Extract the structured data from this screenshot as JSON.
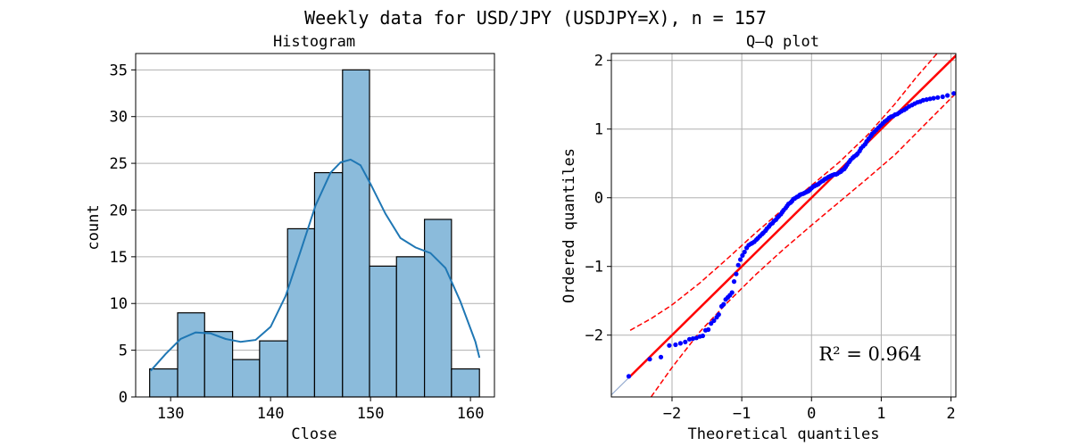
{
  "figure": {
    "title": "Weekly data for USD/JPY (USDJPY=X), n = 157"
  },
  "chart_data": [
    {
      "type": "bar",
      "subtype": "histogram",
      "title": "Histogram",
      "xlabel": "Close",
      "ylabel": "count",
      "xlim": [
        126.5,
        162.4
      ],
      "ylim": [
        0,
        36.75
      ],
      "xticks": [
        130,
        140,
        150,
        160
      ],
      "yticks": [
        0,
        5,
        10,
        15,
        20,
        25,
        30,
        35
      ],
      "grid": "y",
      "bar_color": "#8bbbdb",
      "edge_color": "#000000",
      "kde_color": "#1f77b4",
      "bins": [
        {
          "left": 127.9,
          "right": 130.7,
          "count": 3
        },
        {
          "left": 130.7,
          "right": 133.4,
          "count": 9
        },
        {
          "left": 133.4,
          "right": 136.2,
          "count": 7
        },
        {
          "left": 136.2,
          "right": 138.9,
          "count": 4
        },
        {
          "left": 138.9,
          "right": 141.7,
          "count": 6
        },
        {
          "left": 141.7,
          "right": 144.4,
          "count": 18
        },
        {
          "left": 144.4,
          "right": 147.2,
          "count": 24
        },
        {
          "left": 147.2,
          "right": 149.9,
          "count": 35
        },
        {
          "left": 149.9,
          "right": 152.6,
          "count": 14
        },
        {
          "left": 152.6,
          "right": 155.4,
          "count": 15
        },
        {
          "left": 155.4,
          "right": 158.1,
          "count": 19
        },
        {
          "left": 158.1,
          "right": 160.9,
          "count": 3
        }
      ],
      "kde": {
        "x": [
          128.0,
          129.5,
          131.0,
          132.5,
          134.0,
          135.5,
          137.0,
          138.5,
          140.0,
          141.5,
          143.0,
          144.5,
          146.0,
          147.0,
          148.0,
          149.0,
          150.0,
          151.5,
          153.0,
          154.5,
          156.0,
          157.5,
          159.0,
          160.5,
          160.9
        ],
        "y": [
          2.8,
          4.6,
          6.2,
          6.9,
          6.8,
          6.2,
          5.9,
          6.1,
          7.5,
          10.8,
          15.6,
          20.5,
          24.0,
          25.1,
          25.4,
          24.8,
          22.8,
          19.6,
          17.0,
          16.0,
          15.4,
          13.8,
          10.2,
          5.9,
          4.2
        ]
      }
    },
    {
      "type": "scatter",
      "subtype": "qq-plot",
      "title": "Q–Q plot",
      "xlabel": "Theoretical quantiles",
      "ylabel": "Ordered quantiles",
      "xlim": [
        -2.87,
        2.07
      ],
      "ylim": [
        -2.9,
        2.1
      ],
      "xticks": [
        -2,
        -1,
        0,
        1,
        2
      ],
      "yticks": [
        -2,
        -1,
        0,
        1,
        2
      ],
      "grid": "both",
      "annotation": "R² = 0.964",
      "point_color": "#0000ff",
      "line_color": "#ff0000",
      "fit_line": {
        "slope": 1.0,
        "intercept": 0.0
      },
      "ci_upper": {
        "x": [
          -2.6,
          -2.3,
          -2.0,
          -1.6,
          -1.2,
          -0.8,
          -0.4,
          0.0,
          0.4,
          0.8,
          1.2,
          1.5,
          1.8,
          2.07
        ],
        "y": [
          -1.93,
          -1.76,
          -1.56,
          -1.24,
          -0.88,
          -0.51,
          -0.16,
          0.18,
          0.52,
          0.91,
          1.37,
          1.75,
          2.1,
          2.45
        ]
      },
      "ci_lower": {
        "x": [
          -2.3,
          -2.0,
          -1.6,
          -1.2,
          -0.8,
          -0.4,
          0.0,
          0.4,
          0.8,
          1.2,
          1.6,
          2.07
        ],
        "y": [
          -2.9,
          -2.47,
          -1.95,
          -1.52,
          -1.12,
          -0.75,
          -0.4,
          -0.06,
          0.28,
          0.63,
          1.04,
          1.52
        ]
      },
      "points": {
        "x": [
          -2.62,
          -2.32,
          -2.16,
          -2.04,
          -1.95,
          -1.88,
          -1.81,
          -1.75,
          -1.7,
          -1.65,
          -1.6,
          -1.56,
          -1.52,
          -1.48,
          -1.44,
          -1.4,
          -1.36,
          -1.33,
          -1.29,
          -1.26,
          -1.23,
          -1.2,
          -1.17,
          -1.14,
          -1.11,
          -1.08,
          -1.05,
          -1.02,
          -0.99,
          -0.96,
          -0.93,
          -0.9,
          -0.87,
          -0.85,
          -0.82,
          -0.79,
          -0.77,
          -0.74,
          -0.71,
          -0.69,
          -0.66,
          -0.64,
          -0.61,
          -0.59,
          -0.56,
          -0.54,
          -0.51,
          -0.49,
          -0.47,
          -0.44,
          -0.42,
          -0.4,
          -0.37,
          -0.35,
          -0.33,
          -0.3,
          -0.28,
          -0.26,
          -0.24,
          -0.21,
          -0.19,
          -0.17,
          -0.15,
          -0.12,
          -0.1,
          -0.08,
          -0.06,
          -0.04,
          -0.02,
          0.0,
          0.02,
          0.04,
          0.06,
          0.08,
          0.1,
          0.12,
          0.15,
          0.17,
          0.19,
          0.21,
          0.24,
          0.26,
          0.28,
          0.3,
          0.33,
          0.35,
          0.37,
          0.4,
          0.42,
          0.44,
          0.47,
          0.49,
          0.51,
          0.54,
          0.56,
          0.59,
          0.61,
          0.64,
          0.66,
          0.69,
          0.71,
          0.74,
          0.77,
          0.79,
          0.82,
          0.85,
          0.87,
          0.9,
          0.93,
          0.96,
          0.99,
          1.02,
          1.05,
          1.08,
          1.11,
          1.14,
          1.17,
          1.2,
          1.23,
          1.26,
          1.29,
          1.33,
          1.36,
          1.4,
          1.44,
          1.48,
          1.52,
          1.56,
          1.6,
          1.65,
          1.7,
          1.75,
          1.81,
          1.88,
          1.95,
          2.04
        ],
        "y": [
          -2.6,
          -2.35,
          -2.32,
          -2.15,
          -2.14,
          -2.12,
          -2.1,
          -2.06,
          -2.05,
          -2.04,
          -2.02,
          -2.01,
          -1.93,
          -1.92,
          -1.83,
          -1.79,
          -1.74,
          -1.7,
          -1.58,
          -1.55,
          -1.48,
          -1.45,
          -1.42,
          -1.38,
          -1.22,
          -1.11,
          -0.98,
          -0.9,
          -0.84,
          -0.79,
          -0.73,
          -0.69,
          -0.67,
          -0.66,
          -0.64,
          -0.61,
          -0.59,
          -0.56,
          -0.53,
          -0.51,
          -0.48,
          -0.45,
          -0.42,
          -0.39,
          -0.37,
          -0.34,
          -0.32,
          -0.29,
          -0.27,
          -0.24,
          -0.21,
          -0.18,
          -0.15,
          -0.12,
          -0.09,
          -0.07,
          -0.05,
          -0.02,
          -0.01,
          0.01,
          0.02,
          0.04,
          0.05,
          0.06,
          0.07,
          0.08,
          0.09,
          0.1,
          0.12,
          0.14,
          0.16,
          0.17,
          0.18,
          0.19,
          0.2,
          0.22,
          0.24,
          0.25,
          0.27,
          0.28,
          0.3,
          0.31,
          0.32,
          0.33,
          0.34,
          0.34,
          0.35,
          0.37,
          0.38,
          0.4,
          0.42,
          0.45,
          0.48,
          0.52,
          0.55,
          0.58,
          0.6,
          0.62,
          0.64,
          0.68,
          0.72,
          0.75,
          0.78,
          0.82,
          0.86,
          0.9,
          0.93,
          0.96,
          0.99,
          1.02,
          1.05,
          1.08,
          1.11,
          1.13,
          1.16,
          1.18,
          1.19,
          1.21,
          1.22,
          1.24,
          1.26,
          1.28,
          1.3,
          1.33,
          1.35,
          1.37,
          1.39,
          1.4,
          1.42,
          1.43,
          1.44,
          1.45,
          1.46,
          1.47,
          1.49,
          1.52
        ]
      }
    }
  ]
}
